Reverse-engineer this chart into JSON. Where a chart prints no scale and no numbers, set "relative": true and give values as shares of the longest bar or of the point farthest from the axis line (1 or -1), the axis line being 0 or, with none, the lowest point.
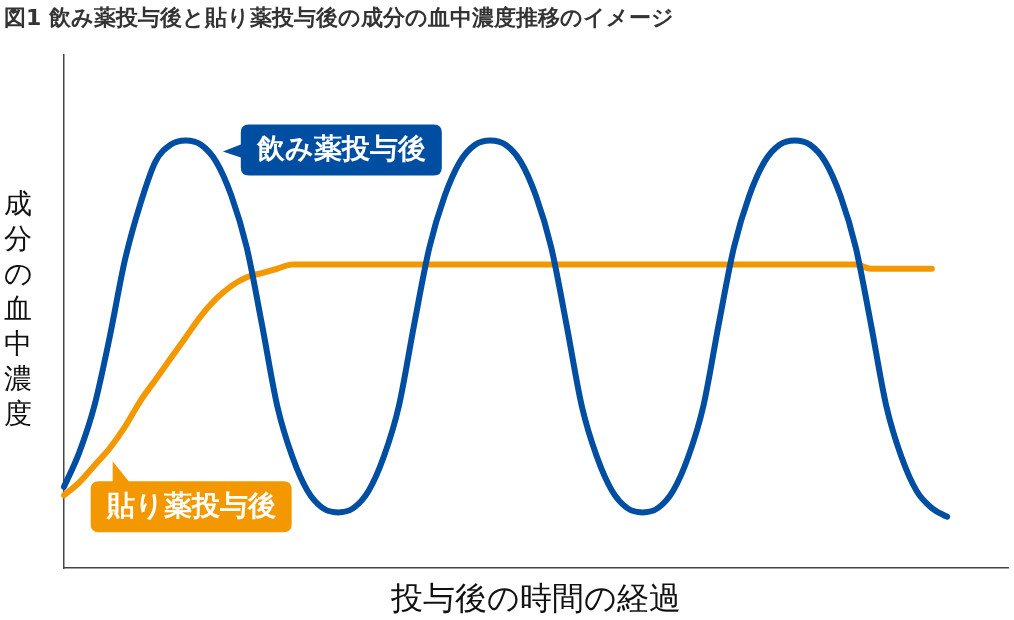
{
  "chart_data": {
    "type": "line",
    "title": "図1 飲み薬投与後と貼り薬投与後の成分の血中濃度推移のイメージ",
    "xlabel": "投与後の時間の経過",
    "ylabel": "成分の血中濃度",
    "relative": true,
    "marker": "none",
    "line_style": "solid",
    "categories": [
      null,
      null,
      null,
      null,
      null,
      null,
      null,
      null,
      null,
      null,
      null,
      null,
      null,
      null,
      null,
      null,
      null,
      null,
      null,
      null,
      null,
      null,
      null,
      null,
      null,
      null,
      null,
      null,
      null,
      null,
      null,
      null,
      null,
      null,
      null,
      null,
      null,
      null,
      null,
      null,
      null,
      null,
      null,
      null,
      null,
      null,
      null,
      null,
      null,
      null,
      null,
      null,
      null,
      null,
      null,
      null,
      null,
      null,
      null,
      null,
      null,
      null,
      null
    ],
    "series": [
      {
        "name": "飲み薬投与後",
        "color": "#004ea2",
        "values": [
          0.19,
          0.27,
          0.38,
          0.54,
          0.72,
          0.85,
          0.95,
          0.99,
          1,
          0.99,
          0.95,
          0.87,
          0.75,
          0.57,
          0.38,
          0.26,
          0.18,
          0.14,
          0.13,
          0.14,
          0.18,
          0.26,
          0.38,
          0.57,
          0.75,
          0.87,
          0.95,
          0.99,
          1,
          0.99,
          0.95,
          0.87,
          0.75,
          0.57,
          0.38,
          0.26,
          0.18,
          0.14,
          0.13,
          0.14,
          0.18,
          0.26,
          0.38,
          0.57,
          0.75,
          0.87,
          0.95,
          0.99,
          1,
          0.99,
          0.95,
          0.87,
          0.75,
          0.57,
          0.38,
          0.26,
          0.18,
          0.14,
          0.12,
          null,
          null,
          null,
          null
        ]
      },
      {
        "name": "貼り薬投与後",
        "color": "#f39800",
        "values": [
          0.17,
          0.2,
          0.24,
          0.28,
          0.33,
          0.39,
          0.44,
          0.49,
          0.54,
          0.59,
          0.63,
          0.66,
          0.68,
          0.69,
          0.7,
          0.71,
          0.71,
          0.71,
          0.71,
          0.71,
          0.71,
          0.71,
          0.71,
          0.71,
          0.71,
          0.71,
          0.71,
          0.71,
          0.71,
          0.71,
          0.71,
          0.71,
          0.71,
          0.71,
          0.71,
          0.71,
          0.71,
          0.71,
          0.71,
          0.71,
          0.71,
          0.71,
          0.71,
          0.71,
          0.71,
          0.71,
          0.71,
          0.71,
          0.71,
          0.71,
          0.71,
          0.71,
          0.71,
          0.7,
          0.7,
          0.7,
          0.7,
          0.7,
          null,
          null,
          null,
          null,
          null
        ]
      }
    ]
  }
}
